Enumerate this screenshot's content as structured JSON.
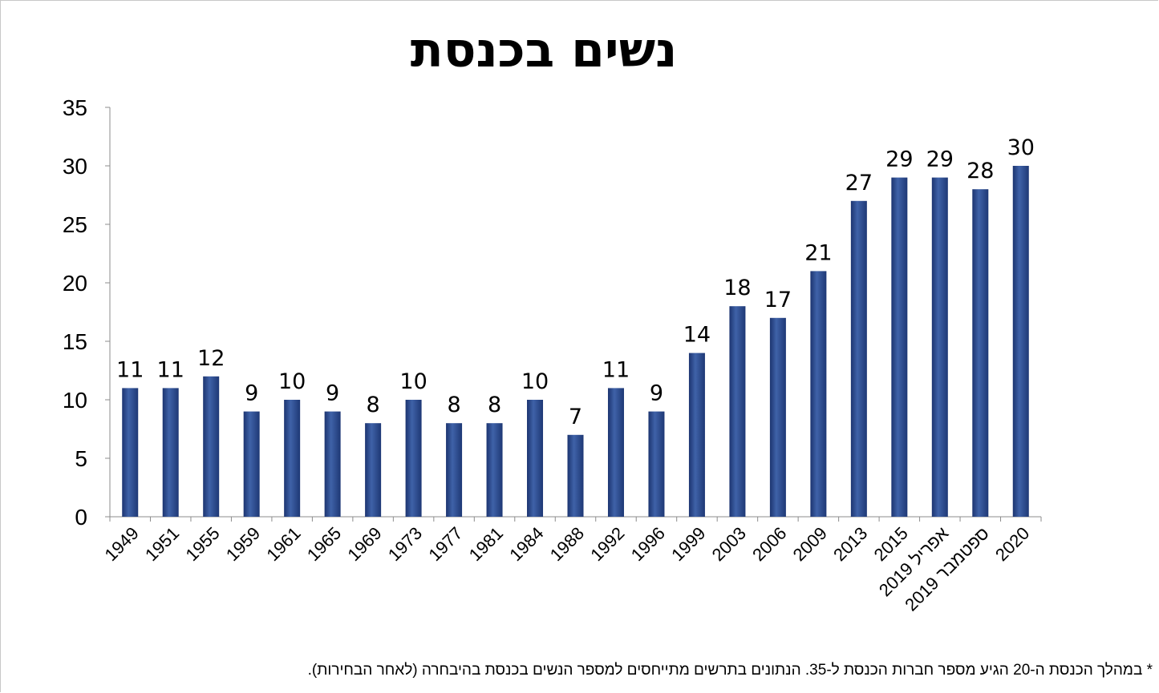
{
  "chart_data": {
    "type": "bar",
    "title": "נשים בכנסת",
    "categories": [
      "1949",
      "1951",
      "1955",
      "1959",
      "1961",
      "1965",
      "1969",
      "1973",
      "1977",
      "1981",
      "1984",
      "1988",
      "1992",
      "1996",
      "1999",
      "2003",
      "2006",
      "2009",
      "2013",
      "2015",
      "אפריל 2019",
      "ספטמבר 2019",
      "2020"
    ],
    "values": [
      11,
      11,
      12,
      9,
      10,
      9,
      8,
      10,
      8,
      8,
      10,
      7,
      11,
      9,
      14,
      18,
      17,
      21,
      27,
      29,
      29,
      28,
      30
    ],
    "ylim": [
      0,
      35
    ],
    "yticks": [
      0,
      5,
      10,
      15,
      20,
      25,
      30,
      35
    ],
    "xlabel": "",
    "ylabel": "",
    "grid": false,
    "bar_color": "#2e4f8f"
  },
  "footnote": "* במהלך הכנסת ה-20 הגיע מספר חברות הכנסת ל-35. הנתונים בתרשים מתייחסים למספר הנשים בכנסת בהיבחרה (לאחר הבחירות)."
}
